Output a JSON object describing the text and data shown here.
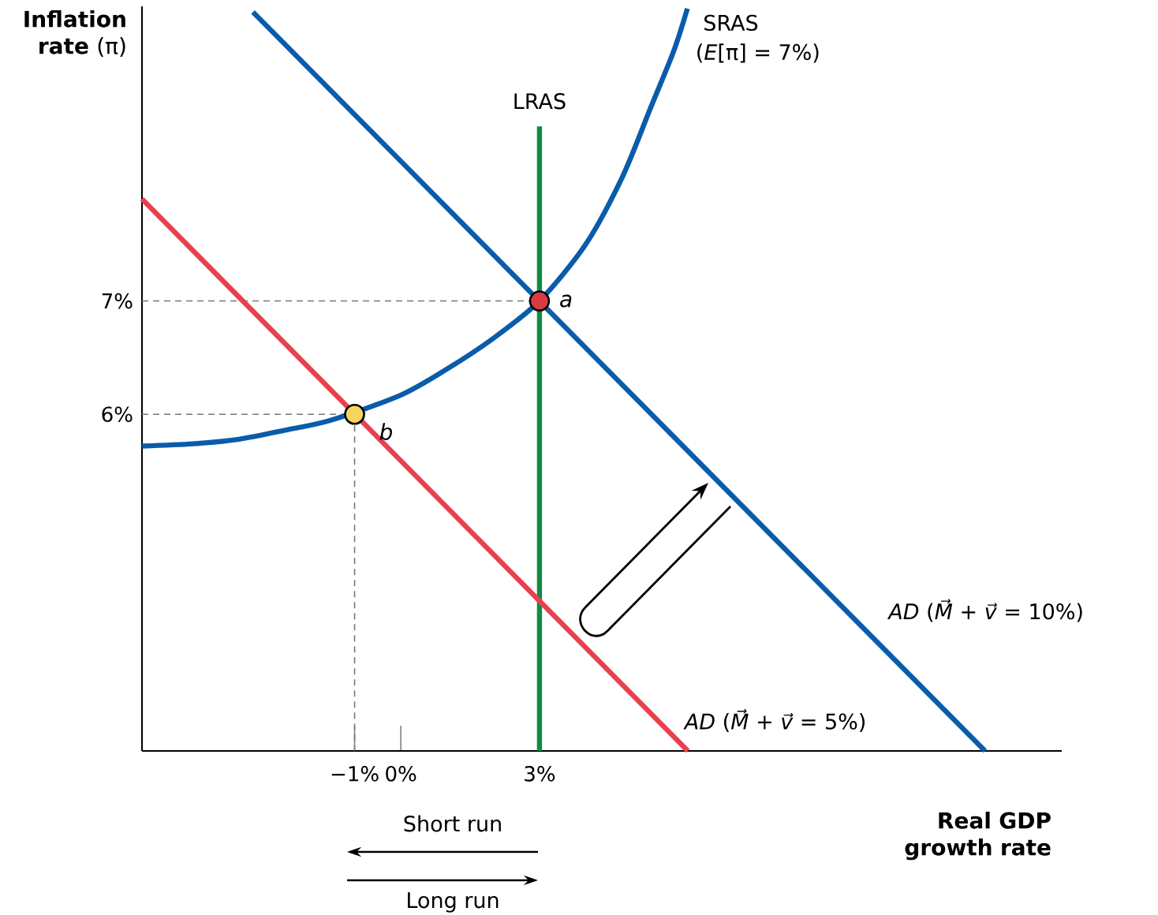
{
  "chart_data": {
    "type": "line",
    "ylabel": "**Inflation rate** (π)",
    "xlabel": "Real GDP growth rate",
    "xlim": [
      -5.6,
      14.3
    ],
    "ylim": [
      3.03,
      9.6
    ],
    "xticks": [
      {
        "value": -1,
        "label": "−1%"
      },
      {
        "value": 0,
        "label": "0%"
      },
      {
        "value": 3,
        "label": "3%"
      }
    ],
    "yticks": [
      {
        "value": 6,
        "label": "6%"
      },
      {
        "value": 7,
        "label": "7%"
      }
    ],
    "grid": false,
    "legend": false,
    "marker": "none",
    "series": [
      {
        "color": "#777777",
        "line_style": "dashed",
        "x": [
          -5.6,
          3
        ],
        "values": [
          7,
          7
        ]
      },
      {
        "color": "#777777",
        "line_style": "dashed",
        "x": [
          -5.6,
          -1
        ],
        "values": [
          6,
          6
        ]
      },
      {
        "color": "#777777",
        "line_style": "dashed",
        "x": [
          -1,
          -1
        ],
        "values": [
          6,
          3.03
        ]
      },
      {
        "name": "SRAS",
        "color": "#0a5cab",
        "x": [
          -5.6,
          -4.5,
          -3.5,
          -2.5,
          -1.5,
          0,
          1,
          2,
          3,
          4,
          4.8,
          5.4,
          5.9,
          6.2
        ],
        "values": [
          5.72,
          5.74,
          5.78,
          5.86,
          5.95,
          6.17,
          6.4,
          6.67,
          7.0,
          7.5,
          8.1,
          8.7,
          9.2,
          9.58
        ]
      },
      {
        "name": "LRAS",
        "color": "#138a43",
        "x": [
          3,
          3
        ],
        "values": [
          3.03,
          8.54
        ]
      },
      {
        "name": "*AD* (*M⃗* + *v⃗* = 10%)",
        "color": "#0a5cab",
        "x": [
          -3.2,
          12.64
        ],
        "values": [
          9.55,
          3.03
        ]
      },
      {
        "name": "*AD* (*M⃗* + *v⃗* = 5%)",
        "color": "#e8414e",
        "x": [
          -5.6,
          6.21
        ],
        "values": [
          7.9,
          3.03
        ]
      },
      {
        "type": "scatter",
        "marker": "circle",
        "x": [
          3,
          -1
        ],
        "values": [
          7,
          6
        ],
        "colors": [
          "#d93a43",
          "#f6d55c"
        ]
      }
    ],
    "annotations": [
      {
        "text": "*a*",
        "x": 3,
        "y": 7
      },
      {
        "text": "*b*",
        "x": -1,
        "y": 6
      },
      "(*E*[π] = 7%)",
      "Short run",
      "Long run"
    ]
  }
}
